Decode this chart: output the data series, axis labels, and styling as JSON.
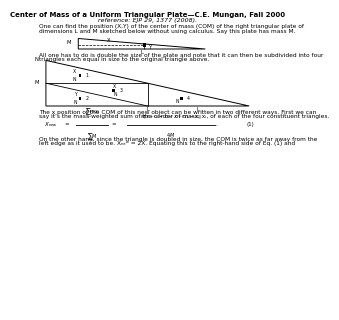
{
  "title": "Center of Mass of a Uniform Triangular Plate—C.E. Mungan, Fall 2000",
  "reference": "reference: EJP 29, 1377 (2008).",
  "intro_text1": "One can find the position (X,Y) of the center of mass (COM) of the right triangular plate of",
  "intro_text2": "dimensions L and M sketched below without using calculus. Say this plate has mass M.",
  "middle_text1": "All one has to do is double the size of the plate and note that it can then be subdivided into four",
  "middle_text2": "triangles each equal in size to the original triangle above.",
  "eq_text1": "The x position of the COM of this new object can be written in two different ways. First we can",
  "eq_text2": "say it’s the mass-weighted sum of the center of mass, xᵢ, of each of the four constituent triangles.",
  "bottom_text1": "On the other hand, since the triangle is doubled in size, the COM is twice as far away from the",
  "bottom_text2": "left edge as it used to be. Xₙₑʷ = 2X. Equating this to the right-hand side of Eq. (1) and",
  "bg_color": "#ffffff",
  "text_color": "#000000",
  "fontsize_title": 5.0,
  "fontsize_ref": 4.5,
  "fontsize_body": 4.2,
  "fontsize_label": 3.8,
  "fontsize_eq": 4.0
}
